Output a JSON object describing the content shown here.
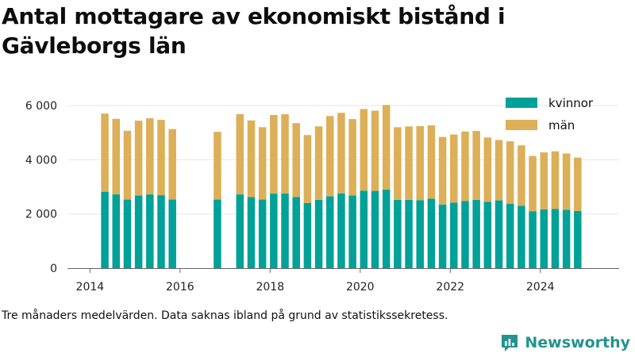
{
  "title": "Antal mottagare av ekonomiskt bistånd i Gävleborgs län",
  "footnote": "Tre månaders medelvärden. Data saknas ibland på grund av statistikssekretess.",
  "brand": {
    "name": "Newsworthy",
    "icon": "newsworthy-logo-icon"
  },
  "colors": {
    "kvinnor": "#00a198",
    "man": "#dcaf58",
    "axis": "#666666",
    "grid": "#e6e6e6"
  },
  "chart_data": {
    "type": "bar",
    "stacked": true,
    "title": "Antal mottagare av ekonomiskt bistånd i Gävleborgs län",
    "xlabel": "",
    "ylabel": "",
    "xlim": [
      2013.5,
      2025.75
    ],
    "ylim": [
      0,
      6000
    ],
    "x_ticks": [
      2014,
      2016,
      2018,
      2020,
      2022,
      2024
    ],
    "x_tick_labels": [
      "2014",
      "2016",
      "2018",
      "2020",
      "2022",
      "2024"
    ],
    "y_ticks": [
      0,
      2000,
      4000,
      6000
    ],
    "y_tick_labels": [
      "0",
      "2 000",
      "4 000",
      "6 000"
    ],
    "grid": true,
    "legend_position": "top-right",
    "x": [
      2014.33,
      2014.58,
      2014.83,
      2015.08,
      2015.33,
      2015.58,
      2015.83,
      2016.83,
      2017.33,
      2017.58,
      2017.83,
      2018.08,
      2018.33,
      2018.58,
      2018.83,
      2019.08,
      2019.33,
      2019.58,
      2019.83,
      2020.08,
      2020.33,
      2020.58,
      2020.83,
      2021.08,
      2021.33,
      2021.58,
      2021.83,
      2022.08,
      2022.33,
      2022.58,
      2022.83,
      2023.08,
      2023.33,
      2023.58,
      2023.83,
      2024.08,
      2024.33,
      2024.58,
      2024.83
    ],
    "series": [
      {
        "name": "kvinnor",
        "values": [
          2820,
          2720,
          2530,
          2680,
          2720,
          2690,
          2530,
          2530,
          2720,
          2620,
          2530,
          2750,
          2750,
          2620,
          2400,
          2520,
          2650,
          2760,
          2680,
          2860,
          2850,
          2900,
          2520,
          2520,
          2510,
          2560,
          2350,
          2420,
          2480,
          2520,
          2450,
          2500,
          2380,
          2300,
          2100,
          2170,
          2180,
          2150,
          2110
        ]
      },
      {
        "name": "män",
        "values": [
          2880,
          2790,
          2540,
          2760,
          2810,
          2780,
          2600,
          2500,
          2960,
          2830,
          2670,
          2900,
          2930,
          2730,
          2510,
          2710,
          2960,
          2970,
          2820,
          3010,
          2960,
          3120,
          2680,
          2710,
          2730,
          2710,
          2490,
          2510,
          2560,
          2540,
          2370,
          2230,
          2300,
          2230,
          2040,
          2100,
          2130,
          2080,
          1970
        ]
      }
    ]
  }
}
